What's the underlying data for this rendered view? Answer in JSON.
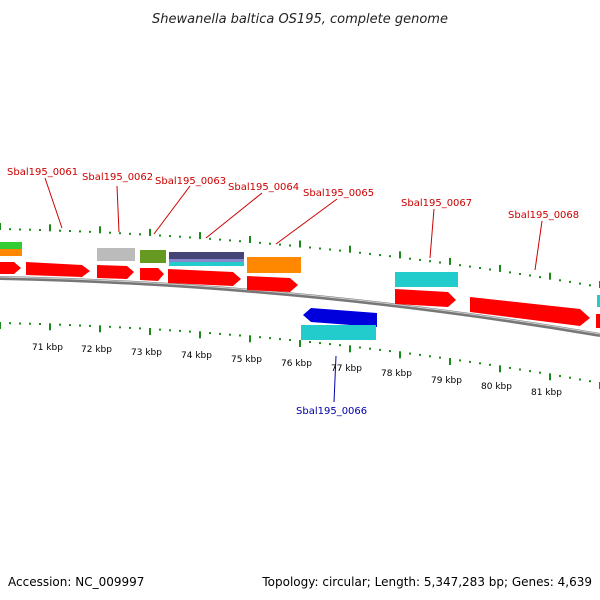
{
  "title": "Shewanella baltica OS195, complete genome",
  "footer": {
    "accession": "Accession: NC_009997",
    "summary": "Topology: circular; Length: 5,347,283 bp; Genes: 4,639"
  },
  "colors": {
    "backbone": "#8a8a8a",
    "tick": "#1a8a1a",
    "label_forward": "#cc0000",
    "label_reverse": "#0000aa",
    "cds": "#ff0000",
    "gene_cyan": "#22cccc",
    "gene_orange": "#ff8800",
    "gene_olive": "#669922",
    "gene_gray": "#bbbbbb",
    "gene_navy": "#333377",
    "gene_green": "#33cc33",
    "gene_blue": "#0000dd"
  },
  "scale_labels": [
    "71 kbp",
    "72 kbp",
    "73 kbp",
    "74 kbp",
    "75 kbp",
    "76 kbp",
    "77 kbp",
    "78 kbp",
    "79 kbp",
    "80 kbp",
    "81 kbp"
  ],
  "gene_labels": {
    "g0061": "Sbal195_0061",
    "g0062": "Sbal195_0062",
    "g0063": "Sbal195_0063",
    "g0064": "Sbal195_0064",
    "g0065": "Sbal195_0065",
    "g0066": "Sbal195_0066",
    "g0067": "Sbal195_0067",
    "g0068": "Sbal195_0068"
  }
}
